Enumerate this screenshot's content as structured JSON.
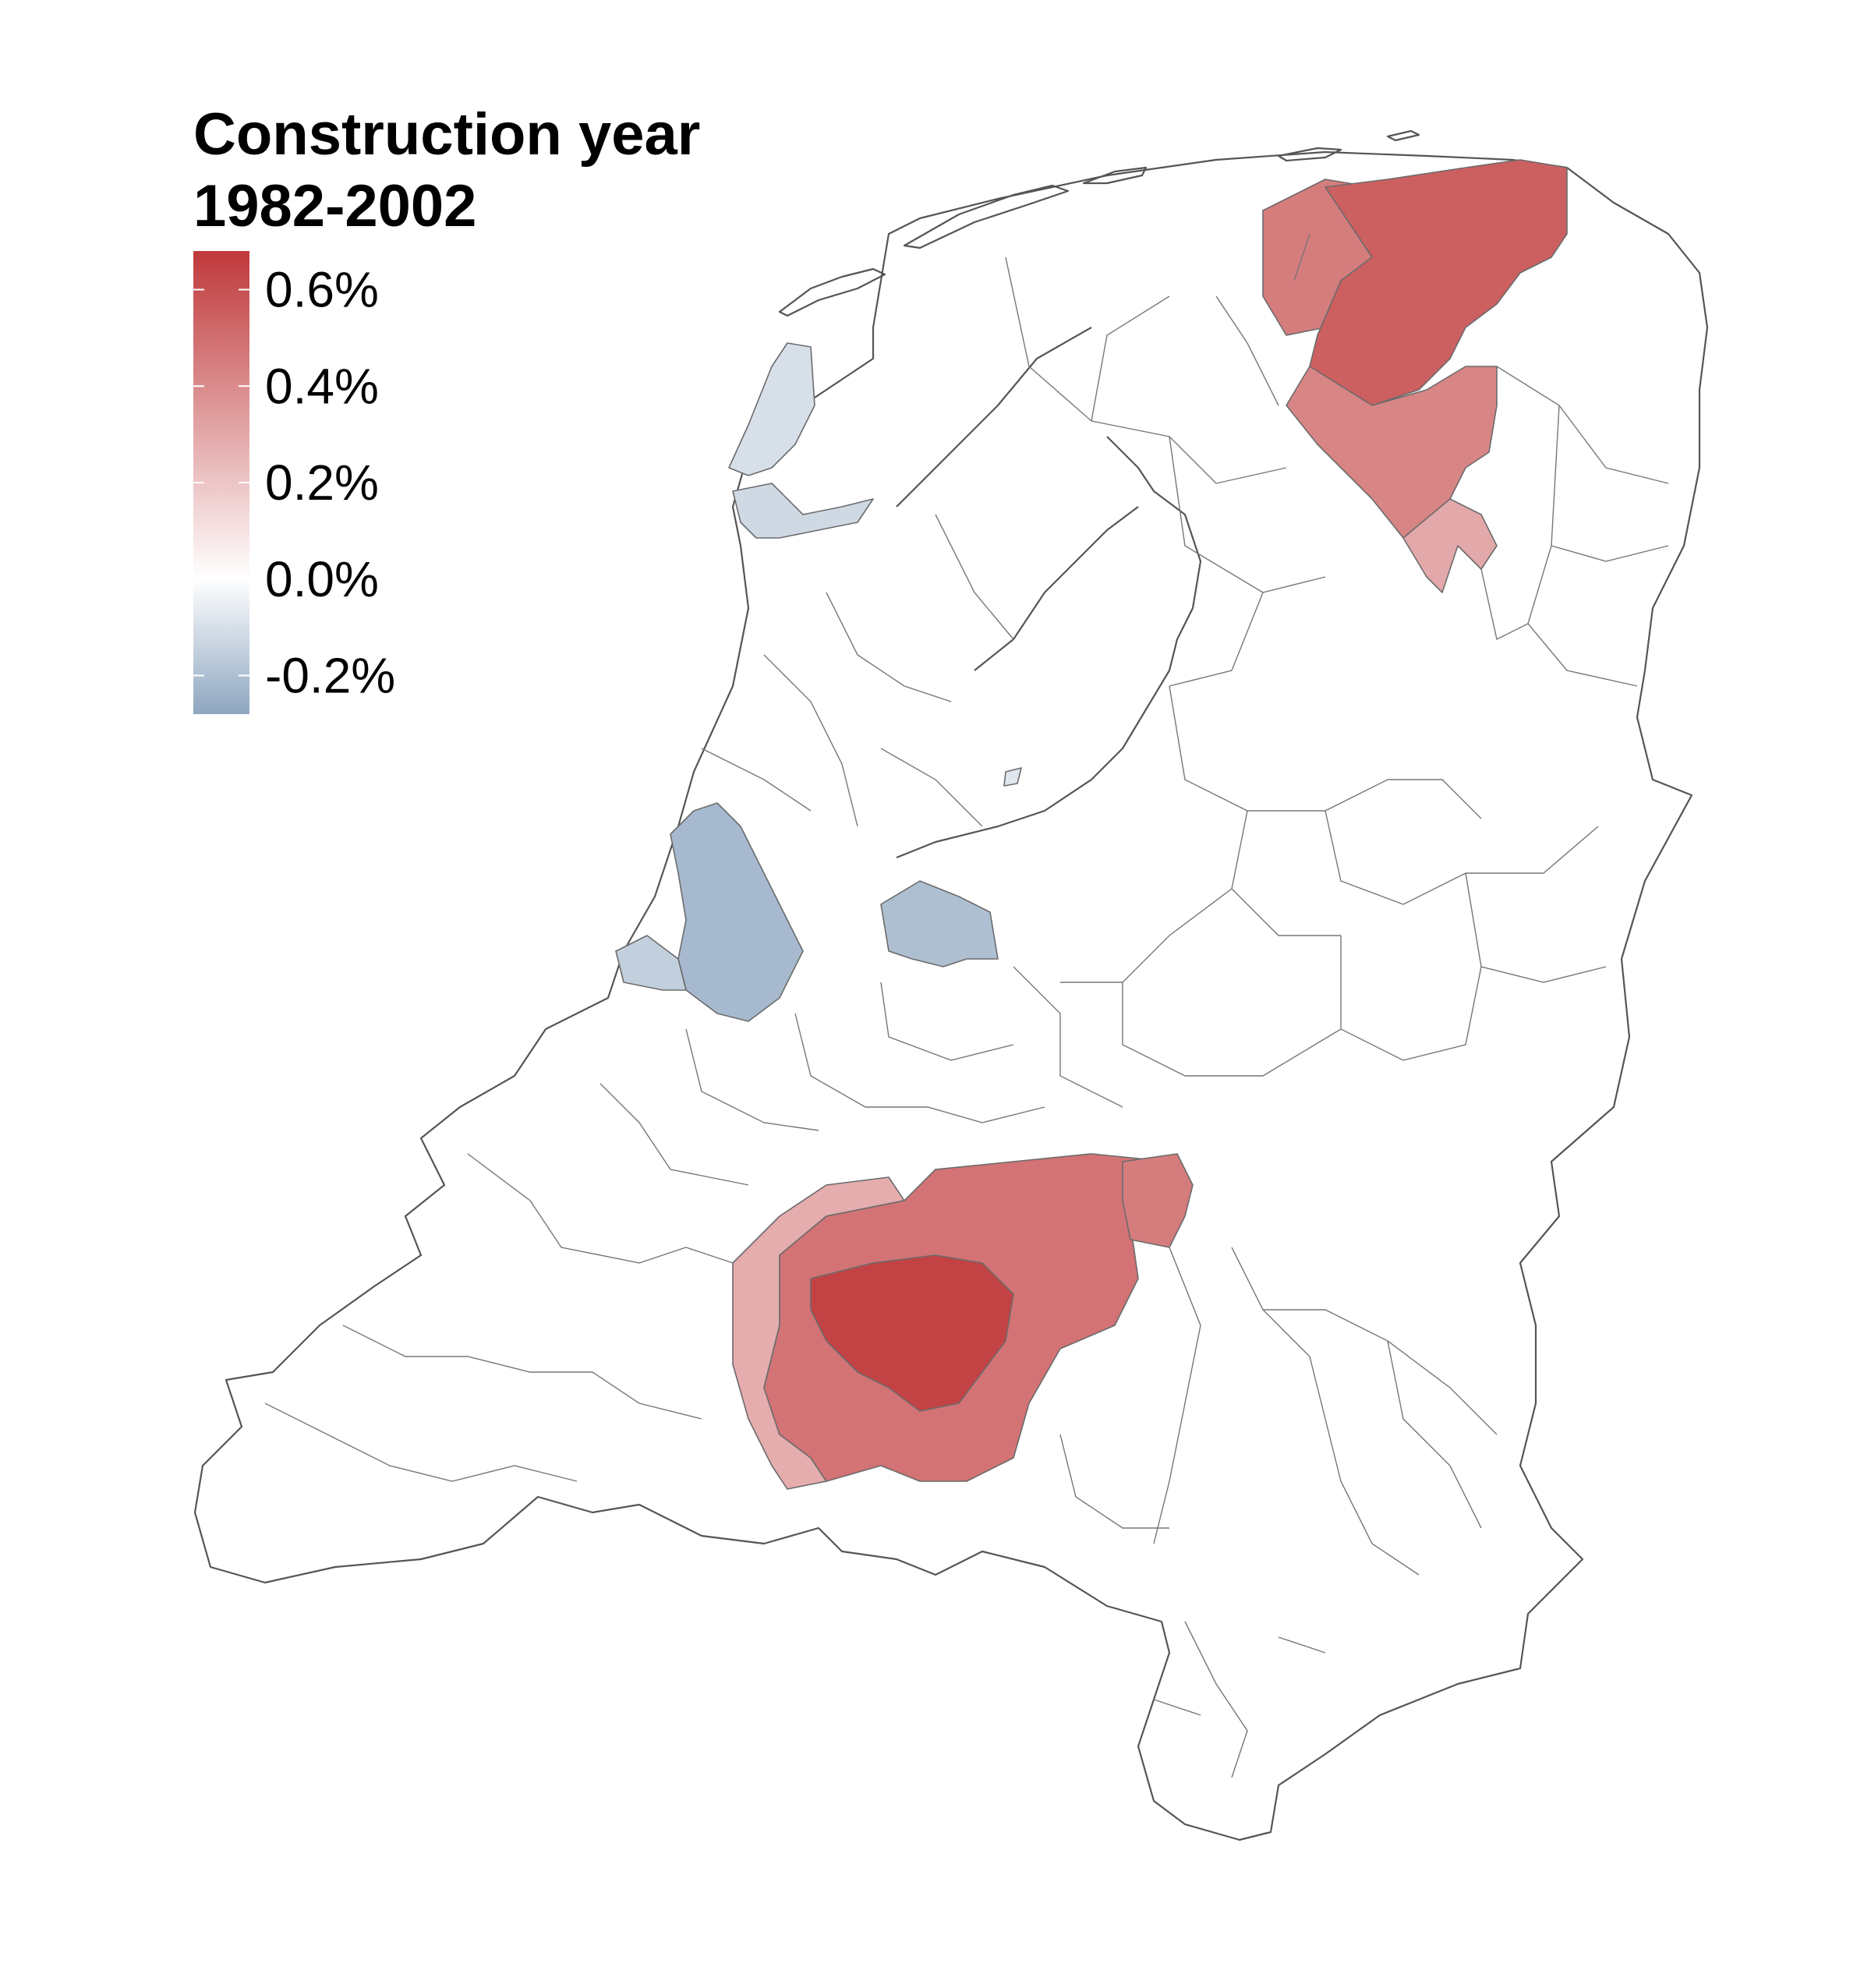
{
  "legend": {
    "title_line1": "Construction year",
    "title_line2": "1982-2002",
    "ticks": [
      {
        "label": "0.6%",
        "value": 0.6
      },
      {
        "label": "0.4%",
        "value": 0.4
      },
      {
        "label": "0.2%",
        "value": 0.2
      },
      {
        "label": "0.0%",
        "value": 0.0
      },
      {
        "label": "-0.2%",
        "value": -0.2
      }
    ],
    "range": [
      -0.28,
      0.68
    ],
    "colors": {
      "low": "#8ea6c0",
      "mid": "#ffffff",
      "high": "#c0393b"
    }
  },
  "map": {
    "country": "Netherlands",
    "boundary_color": "#6b6b6b",
    "regions": [
      {
        "id": "groningen-cluster",
        "value": 0.55
      },
      {
        "id": "groningen-west-fringe",
        "value": 0.45
      },
      {
        "id": "drenthe-cluster",
        "value": 0.42
      },
      {
        "id": "drenthe-south-fringe",
        "value": 0.3
      },
      {
        "id": "north-brabant-core",
        "value": 0.65
      },
      {
        "id": "north-brabant-mid",
        "value": 0.48
      },
      {
        "id": "north-brabant-outer",
        "value": 0.28
      },
      {
        "id": "nijmegen-area",
        "value": 0.45
      },
      {
        "id": "texel",
        "value": -0.1
      },
      {
        "id": "den-helder-area",
        "value": -0.12
      },
      {
        "id": "randstad-cluster",
        "value": -0.22
      },
      {
        "id": "hague-coast",
        "value": -0.15
      },
      {
        "id": "utrecht-cluster",
        "value": -0.2
      },
      {
        "id": "flevo-coast",
        "value": -0.08
      }
    ]
  }
}
